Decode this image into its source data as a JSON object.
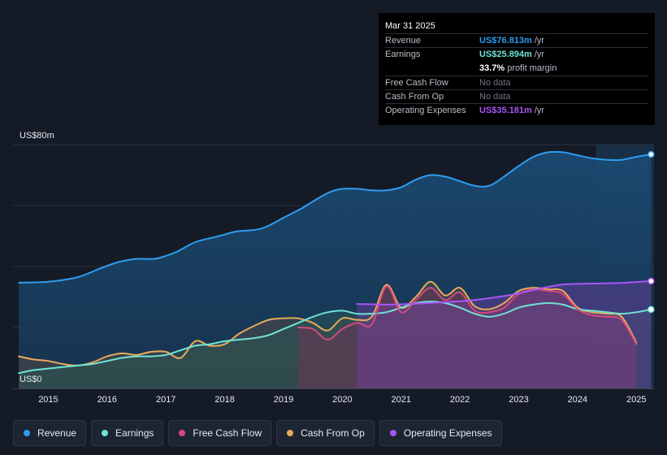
{
  "tooltip": {
    "date": "Mar 31 2025",
    "rows": {
      "revenue": {
        "label": "Revenue",
        "value": "US$76.813m",
        "unit": "/yr",
        "color": "#2e9cf0"
      },
      "earnings": {
        "label": "Earnings",
        "value": "US$25.894m",
        "unit": "/yr",
        "color": "#6fe3d5"
      },
      "margin": {
        "value": "33.7%",
        "text": "profit margin"
      },
      "fcf": {
        "label": "Free Cash Flow",
        "value": "No data"
      },
      "cfo": {
        "label": "Cash From Op",
        "value": "No data"
      },
      "opex": {
        "label": "Operating Expenses",
        "value": "US$35.181m",
        "unit": "/yr",
        "color": "#a855f7"
      }
    }
  },
  "legend": {
    "items": [
      {
        "label": "Revenue",
        "color": "#2e9cf0"
      },
      {
        "label": "Earnings",
        "color": "#6fe3d5"
      },
      {
        "label": "Free Cash Flow",
        "color": "#d6497e"
      },
      {
        "label": "Cash From Op",
        "color": "#e9aa5a"
      },
      {
        "label": "Operating Expenses",
        "color": "#a855f7"
      }
    ]
  },
  "chart_data": {
    "type": "area",
    "ylim": [
      0,
      80
    ],
    "xlim": [
      2014.4,
      2025.3
    ],
    "y_top_label": "US$80m",
    "y_bottom_label": "US$0",
    "x_ticks": [
      "2015",
      "2016",
      "2017",
      "2018",
      "2019",
      "2020",
      "2021",
      "2022",
      "2023",
      "2024",
      "2025"
    ],
    "series": [
      {
        "name": "Revenue",
        "color": "#2e9cf0",
        "x": [
          2014.5,
          2015.0,
          2015.5,
          2015.9,
          2016.2,
          2016.5,
          2016.8,
          2017.0,
          2017.2,
          2017.5,
          2017.8,
          2018.0,
          2018.2,
          2018.5,
          2018.7,
          2019.0,
          2019.3,
          2019.6,
          2019.8,
          2020.0,
          2020.25,
          2020.5,
          2020.75,
          2021.0,
          2021.25,
          2021.5,
          2021.75,
          2022.0,
          2022.25,
          2022.5,
          2022.75,
          2023.0,
          2023.25,
          2023.5,
          2023.75,
          2024.0,
          2024.25,
          2024.5,
          2024.75,
          2025.0,
          2025.25
        ],
        "values": [
          34.7,
          35.0,
          36.5,
          39.5,
          41.5,
          42.5,
          42.5,
          43.5,
          45.0,
          48.0,
          49.5,
          50.5,
          51.5,
          52.0,
          53.0,
          56.0,
          59.0,
          62.5,
          64.5,
          65.5,
          65.5,
          65.0,
          65.0,
          66.0,
          68.5,
          70.0,
          69.5,
          68.0,
          66.5,
          66.5,
          69.5,
          73.0,
          76.0,
          77.5,
          77.5,
          76.5,
          75.5,
          75.0,
          75.0,
          76.0,
          76.8
        ]
      },
      {
        "name": "Earnings",
        "color": "#6fe3d5",
        "x": [
          2014.5,
          2014.75,
          2015.0,
          2015.25,
          2015.5,
          2015.75,
          2016.0,
          2016.25,
          2016.5,
          2016.75,
          2017.0,
          2017.25,
          2017.5,
          2017.75,
          2018.0,
          2018.25,
          2018.5,
          2018.75,
          2019.0,
          2019.25,
          2019.5,
          2019.75,
          2020.0,
          2020.25,
          2020.5,
          2020.75,
          2021.0,
          2021.25,
          2021.5,
          2021.75,
          2022.0,
          2022.25,
          2022.5,
          2022.75,
          2023.0,
          2023.25,
          2023.5,
          2023.75,
          2024.0,
          2024.25,
          2024.5,
          2024.75,
          2025.0,
          2025.25
        ],
        "values": [
          5.0,
          6.0,
          6.5,
          7.0,
          7.5,
          8.0,
          9.0,
          10.0,
          10.5,
          10.5,
          11.0,
          12.5,
          14.0,
          14.5,
          15.5,
          16.0,
          16.5,
          17.5,
          19.5,
          21.5,
          23.5,
          25.0,
          25.5,
          24.5,
          24.5,
          25.0,
          26.5,
          28.0,
          28.5,
          28.0,
          26.5,
          24.5,
          23.5,
          24.5,
          26.5,
          27.5,
          28.0,
          27.5,
          26.0,
          25.5,
          25.0,
          24.5,
          25.0,
          25.9
        ]
      },
      {
        "name": "Free Cash Flow",
        "color": "#d6497e",
        "x": [
          2019.25,
          2019.5,
          2019.75,
          2020.0,
          2020.25,
          2020.5,
          2020.75,
          2021.0,
          2021.25,
          2021.5,
          2021.75,
          2022.0,
          2022.25,
          2022.5,
          2022.75,
          2023.0,
          2023.25,
          2023.5,
          2023.75,
          2024.0,
          2024.25,
          2024.5,
          2024.75,
          2025.0
        ],
        "values": [
          20.0,
          19.5,
          16.0,
          19.5,
          21.5,
          21.0,
          33.5,
          25.0,
          29.0,
          33.0,
          29.0,
          31.5,
          25.5,
          25.0,
          26.5,
          31.0,
          32.5,
          32.0,
          31.0,
          26.0,
          24.0,
          23.5,
          22.5,
          14.5
        ]
      },
      {
        "name": "Cash From Op",
        "color": "#e9aa5a",
        "x": [
          2014.5,
          2014.75,
          2015.0,
          2015.25,
          2015.5,
          2015.75,
          2016.0,
          2016.25,
          2016.5,
          2016.75,
          2017.0,
          2017.25,
          2017.5,
          2017.75,
          2018.0,
          2018.25,
          2018.5,
          2018.75,
          2019.0,
          2019.25,
          2019.5,
          2019.75,
          2020.0,
          2020.25,
          2020.5,
          2020.75,
          2021.0,
          2021.25,
          2021.5,
          2021.75,
          2022.0,
          2022.25,
          2022.5,
          2022.75,
          2023.0,
          2023.25,
          2023.5,
          2023.75,
          2024.0,
          2024.25,
          2024.5,
          2024.75,
          2025.0
        ],
        "values": [
          10.5,
          9.5,
          9.0,
          8.0,
          7.5,
          8.5,
          10.5,
          11.5,
          11.0,
          12.0,
          12.0,
          10.0,
          15.5,
          14.0,
          14.5,
          18.0,
          20.5,
          22.5,
          23.0,
          23.0,
          21.5,
          19.0,
          23.0,
          22.5,
          23.5,
          34.0,
          26.5,
          30.0,
          35.0,
          30.5,
          33.0,
          27.0,
          26.0,
          28.0,
          32.0,
          33.0,
          32.5,
          32.0,
          26.5,
          25.0,
          24.5,
          23.5,
          15.0
        ]
      },
      {
        "name": "Operating Expenses",
        "color": "#a855f7",
        "x": [
          2020.25,
          2020.5,
          2020.75,
          2021.0,
          2021.25,
          2021.5,
          2021.75,
          2022.0,
          2022.25,
          2022.5,
          2022.75,
          2023.0,
          2023.25,
          2023.5,
          2023.75,
          2024.0,
          2024.25,
          2024.5,
          2024.75,
          2025.0,
          2025.25
        ],
        "values": [
          27.7,
          27.6,
          27.5,
          27.6,
          27.8,
          28.0,
          28.3,
          28.6,
          29.0,
          29.6,
          30.3,
          31.2,
          32.3,
          33.3,
          34.1,
          34.3,
          34.4,
          34.5,
          34.6,
          34.9,
          35.2
        ]
      }
    ]
  }
}
